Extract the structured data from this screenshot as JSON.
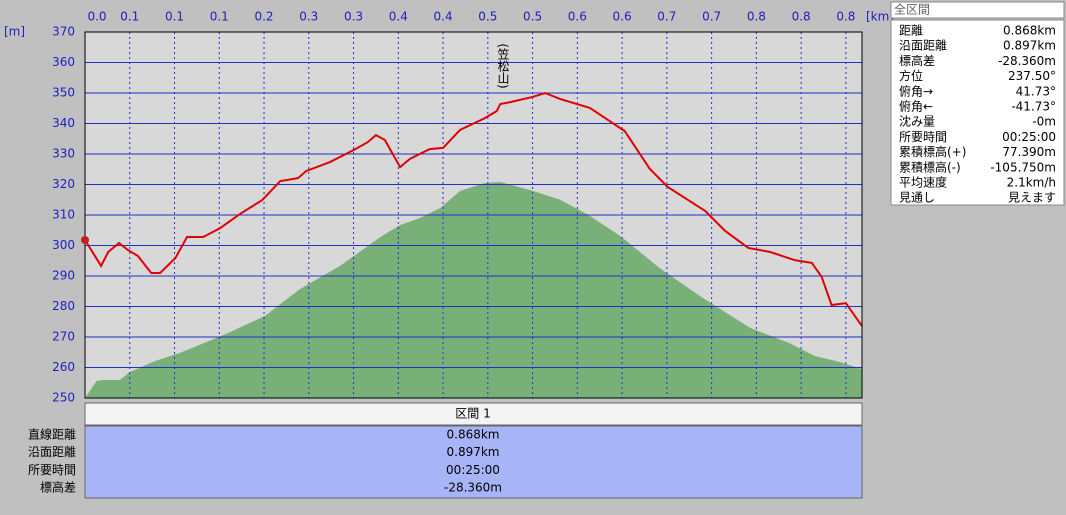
{
  "chart_data": {
    "type": "line",
    "y_label": "[m]",
    "x_label": "[km]",
    "annotations": [
      "(笠松山)"
    ],
    "xlim": [
      0,
      0.868
    ],
    "ylim": [
      250,
      370
    ],
    "yticks": [
      250,
      260,
      270,
      280,
      290,
      300,
      310,
      320,
      330,
      340,
      350,
      360,
      370
    ],
    "xticks": [
      {
        "value": 0,
        "label": "0.0"
      },
      {
        "value": 0.05,
        "label": "0.1"
      },
      {
        "value": 0.1,
        "label": "0.1"
      },
      {
        "value": 0.15,
        "label": "0.1"
      },
      {
        "value": 0.2,
        "label": "0.2"
      },
      {
        "value": 0.25,
        "label": "0.3"
      },
      {
        "value": 0.3,
        "label": "0.3"
      },
      {
        "value": 0.35,
        "label": "0.4"
      },
      {
        "value": 0.4,
        "label": "0.4"
      },
      {
        "value": 0.45,
        "label": "0.5"
      },
      {
        "value": 0.5,
        "label": "0.5"
      },
      {
        "value": 0.55,
        "label": "0.6"
      },
      {
        "value": 0.6,
        "label": "0.6"
      },
      {
        "value": 0.65,
        "label": "0.7"
      },
      {
        "value": 0.7,
        "label": "0.7"
      },
      {
        "value": 0.75,
        "label": "0.8"
      },
      {
        "value": 0.8,
        "label": "0.8"
      },
      {
        "value": 0.85,
        "label": "0.8"
      }
    ],
    "grid": true,
    "series": [
      {
        "kind": "area",
        "color": "#78b078",
        "x": [
          0,
          0.013,
          0.021,
          0.039,
          0.05,
          0.078,
          0.106,
          0.128,
          0.162,
          0.201,
          0.24,
          0.285,
          0.33,
          0.352,
          0.374,
          0.397,
          0.419,
          0.447,
          0.464,
          0.497,
          0.531,
          0.564,
          0.598,
          0.642,
          0.687,
          0.743,
          0.787,
          0.815,
          0.843,
          0.868
        ],
        "values": [
          250,
          255.6,
          255.9,
          255.9,
          258.5,
          262.1,
          264.8,
          267.4,
          271.6,
          276.9,
          285.7,
          293.3,
          302.8,
          306.7,
          309,
          312.3,
          317.9,
          320.5,
          320.8,
          318.2,
          315,
          309.7,
          303.1,
          292.6,
          283.4,
          273,
          268,
          263.8,
          261.8,
          259.5
        ]
      },
      {
        "kind": "line",
        "color": "#e00000",
        "x": [
          0,
          0.018,
          0.026,
          0.038,
          0.048,
          0.059,
          0.074,
          0.084,
          0.101,
          0.114,
          0.132,
          0.151,
          0.173,
          0.198,
          0.218,
          0.238,
          0.247,
          0.274,
          0.302,
          0.316,
          0.325,
          0.335,
          0.352,
          0.363,
          0.385,
          0.4,
          0.419,
          0.447,
          0.46,
          0.464,
          0.475,
          0.5,
          0.514,
          0.531,
          0.564,
          0.603,
          0.631,
          0.651,
          0.693,
          0.715,
          0.741,
          0.765,
          0.793,
          0.812,
          0.823,
          0.834,
          0.85,
          0.868
        ],
        "values": [
          301.8,
          293.3,
          297.9,
          300.8,
          298.5,
          296.6,
          291,
          291,
          295.9,
          302.8,
          302.8,
          305.7,
          310.3,
          314.9,
          321.1,
          322.1,
          324.4,
          327.4,
          331.6,
          333.9,
          336.2,
          334.6,
          325.7,
          328.4,
          331.6,
          332,
          337.9,
          341.8,
          344.1,
          346.4,
          347,
          348.7,
          350,
          348,
          345.1,
          337.5,
          325.1,
          319.2,
          311.3,
          304.8,
          299.2,
          297.9,
          295.2,
          294.3,
          289.7,
          280.5,
          281.1,
          273.6
        ]
      }
    ]
  },
  "summary": {
    "title": "全区間",
    "rows": [
      [
        "距離",
        "0.868km"
      ],
      [
        "沿面距離",
        "0.897km"
      ],
      [
        "標高差",
        "-28.360m"
      ],
      [
        "方位",
        "237.50°"
      ],
      [
        "俯角→",
        "41.73°"
      ],
      [
        "俯角←",
        "-41.73°"
      ],
      [
        "沈み量",
        "-0m"
      ],
      [
        "所要時間",
        "00:25:00"
      ],
      [
        "累積標高(+)",
        "77.390m"
      ],
      [
        "累積標高(-)",
        "-105.750m"
      ],
      [
        "平均速度",
        "2.1km/h"
      ],
      [
        "見通し",
        "見えます"
      ]
    ]
  },
  "section_table": {
    "header": "区間 1",
    "rows": [
      [
        "直線距離",
        "0.868km"
      ],
      [
        "沿面距離",
        "0.897km"
      ],
      [
        "所要時間",
        "00:25:00"
      ],
      [
        "標高差",
        "-28.360m"
      ]
    ]
  }
}
